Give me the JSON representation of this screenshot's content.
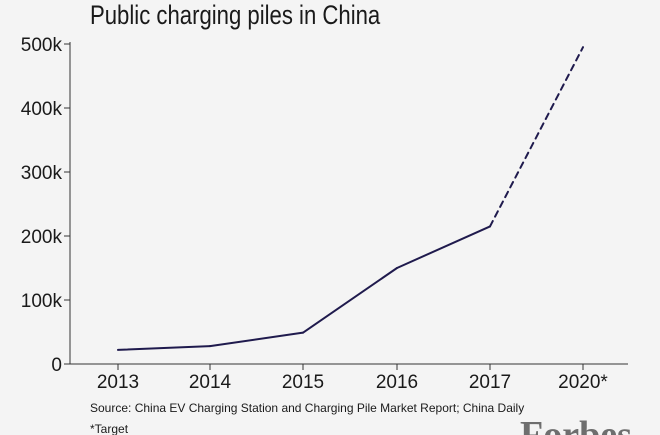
{
  "chart_data": {
    "type": "line",
    "title": "Public charging piles in China",
    "categories": [
      "2013",
      "2014",
      "2015",
      "2016",
      "2017",
      "2020*"
    ],
    "series": [
      {
        "values": [
          22000,
          28000,
          49000,
          150000,
          215000,
          495000
        ],
        "style": [
          "solid",
          "solid",
          "solid",
          "solid",
          "dashed"
        ]
      }
    ],
    "ylim": [
      0,
      500000
    ],
    "y_ticks": [
      0,
      100000,
      200000,
      300000,
      400000,
      500000
    ],
    "y_tick_labels": [
      "0",
      "100k",
      "200k",
      "300k",
      "400k",
      "500k"
    ],
    "grid": false,
    "line_color": "#1f1a4d"
  },
  "source": "Source: China EV Charging Station and Charging Pile Market Report; China Daily",
  "note": "*Target",
  "logo": "Forbes"
}
